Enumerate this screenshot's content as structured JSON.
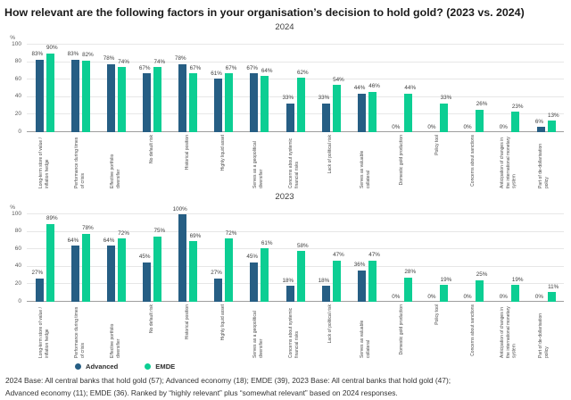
{
  "title": "How relevant are the following factors in your organisation’s decision to hold gold? (2023 vs. 2024)",
  "axis": {
    "unit": "%",
    "ticks": [
      0,
      20,
      40,
      60,
      80,
      100
    ],
    "max": 100
  },
  "colors": {
    "advanced": "#265e84",
    "emde": "#0cce93",
    "grid": "#e7e7e7",
    "baseline": "#9e9e9e"
  },
  "legend": {
    "advanced": "Advanced",
    "emde": "EMDE"
  },
  "footer": {
    "line1": "2024 Base: All central banks that hold gold (57); Advanced economy (18); EMDE (39), 2023 Base: All central banks that hold gold (47);",
    "line2": "Advanced economy (11); EMDE (36). Ranked by “highly relevant” plus “somewhat relevant” based on 2024 responses."
  },
  "chart_data": [
    {
      "type": "bar",
      "title": "2024",
      "xlabel": "",
      "ylabel": "%",
      "ylim": [
        0,
        100
      ],
      "grid": true,
      "legend_position": "bottom-left",
      "categories": [
        "Long-term store of value / inflation hedge",
        "Performance during times of crisis",
        "Effective portfolio diversifier",
        "No default risk",
        "Historical position",
        "Highly liquid asset",
        "Serves as a geopolitical diversifier",
        "Concerns about systemic financial risks",
        "Lack of political risk",
        "Serves as valuable collateral",
        "Domestic gold production",
        "Policy tool",
        "Concerns about sanctions",
        "Anticipation of changes in the international monetary system",
        "Part of de-dollarisation policy"
      ],
      "series": [
        {
          "name": "Advanced",
          "values": [
            83,
            83,
            78,
            67,
            78,
            61,
            67,
            33,
            33,
            44,
            0,
            0,
            0,
            0,
            6
          ]
        },
        {
          "name": "EMDE",
          "values": [
            90,
            82,
            74,
            74,
            67,
            67,
            64,
            62,
            54,
            46,
            44,
            33,
            26,
            23,
            13
          ]
        }
      ]
    },
    {
      "type": "bar",
      "title": "2023",
      "xlabel": "",
      "ylabel": "%",
      "ylim": [
        0,
        100
      ],
      "grid": true,
      "legend_position": "bottom-left",
      "categories": [
        "Long-term store of value / inflation hedge",
        "Performance during times of crisis",
        "Effective portfolio diversifier",
        "No default risk",
        "Historical position",
        "Highly liquid asset",
        "Serves as a geopolitical diversifier",
        "Concerns about systemic financial risks",
        "Lack of political risk",
        "Serves as valuable collateral",
        "Domestic gold production",
        "Policy tool",
        "Concerns about sanctions",
        "Anticipation of changes in the international monetary system",
        "Part of de-dollarisation policy"
      ],
      "series": [
        {
          "name": "Advanced",
          "values": [
            27,
            64,
            64,
            45,
            100,
            27,
            45,
            18,
            18,
            36,
            0,
            0,
            0,
            0,
            0
          ]
        },
        {
          "name": "EMDE",
          "values": [
            89,
            78,
            72,
            75,
            69,
            72,
            61,
            58,
            47,
            47,
            28,
            19,
            25,
            19,
            11
          ]
        }
      ]
    }
  ]
}
